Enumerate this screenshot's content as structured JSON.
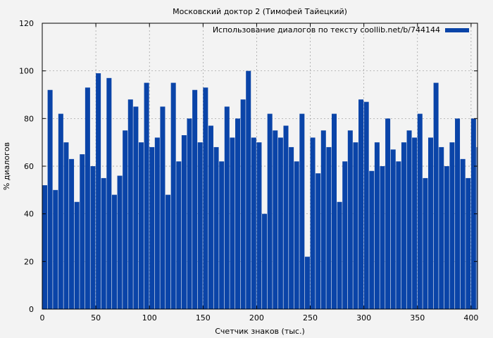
{
  "chart_data": {
    "type": "bar",
    "title": "Московский доктор 2 (Тимофей Тайецкий)",
    "xlabel": "Счетчик знаков (тыс.)",
    "ylabel": "% диалогов",
    "legend": "Использование диалогов по тексту coollib.net/b/744144",
    "legend_position": "top-right",
    "grid": true,
    "xlim": [
      0,
      406
    ],
    "ylim": [
      0,
      120
    ],
    "xticks": [
      0,
      50,
      100,
      150,
      200,
      250,
      300,
      350,
      400
    ],
    "yticks": [
      0,
      20,
      40,
      60,
      80,
      100,
      120
    ],
    "bar_color": "#0a44a8",
    "background": "#f3f3f3",
    "x": [
      0,
      5,
      10,
      15,
      20,
      25,
      30,
      35,
      40,
      45,
      50,
      55,
      60,
      65,
      70,
      75,
      80,
      85,
      90,
      95,
      100,
      105,
      110,
      115,
      120,
      125,
      130,
      135,
      140,
      145,
      150,
      155,
      160,
      165,
      170,
      175,
      180,
      185,
      190,
      195,
      200,
      205,
      210,
      215,
      220,
      225,
      230,
      235,
      240,
      245,
      250,
      255,
      260,
      265,
      270,
      275,
      280,
      285,
      290,
      295,
      300,
      305,
      310,
      315,
      320,
      325,
      330,
      335,
      340,
      345,
      350,
      355,
      360,
      365,
      370,
      375,
      380,
      385,
      390,
      395,
      400,
      405
    ],
    "values": [
      52,
      92,
      50,
      82,
      70,
      63,
      45,
      65,
      93,
      60,
      99,
      55,
      97,
      48,
      56,
      75,
      88,
      85,
      70,
      95,
      68,
      72,
      85,
      48,
      95,
      62,
      73,
      80,
      92,
      70,
      93,
      77,
      68,
      62,
      85,
      72,
      80,
      88,
      100,
      72,
      70,
      40,
      82,
      75,
      72,
      77,
      68,
      62,
      82,
      22,
      72,
      57,
      75,
      68,
      82,
      45,
      62,
      75,
      70,
      88,
      87,
      58,
      70,
      60,
      80,
      67,
      62,
      70,
      75,
      72,
      82,
      55,
      72,
      95,
      68,
      60,
      70,
      80,
      63,
      55,
      80,
      68
    ]
  }
}
